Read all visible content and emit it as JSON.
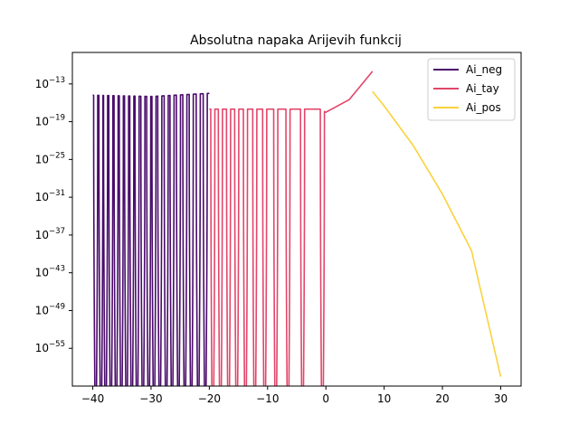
{
  "chart_data": {
    "type": "line",
    "title": "Absolutna napaka Arijevih funkcij",
    "xlabel": "",
    "ylabel": "",
    "x_scale": "linear",
    "y_scale": "log",
    "xlim": [
      -43.5,
      33.5
    ],
    "ylim_exponent": [
      -61,
      -8
    ],
    "x_ticks": [
      -40,
      -30,
      -20,
      -10,
      0,
      10,
      20,
      30
    ],
    "x_tick_labels": [
      "−40",
      "−30",
      "−20",
      "−10",
      "0",
      "10",
      "20",
      "30"
    ],
    "y_tick_exponents": [
      -55,
      -49,
      -43,
      -37,
      -31,
      -25,
      -19,
      -13
    ],
    "y_tick_labels": [
      "−55",
      "−49",
      "−43",
      "−37",
      "−31",
      "−25",
      "−19",
      "−13"
    ],
    "y_tick_base": "10",
    "legend_position": "top-right",
    "grid": false,
    "series": [
      {
        "name": "Ai_neg",
        "color": "#4a0c6b",
        "x_range": [
          -40,
          -20
        ],
        "log10_error": [
          [
            -40,
            -14.8
          ],
          [
            -30,
            -15.0
          ],
          [
            -20,
            -14.5
          ]
        ],
        "oscillating_to_zero_near": [
          -39.5,
          -38.6,
          -37.8,
          -36.9,
          -36.0,
          -35.1,
          -34.2,
          -33.3,
          -32.4,
          -31.4,
          -30.4,
          -29.5,
          -28.5,
          -27.4,
          -26.4,
          -25.3,
          -24.2,
          -23.1,
          -21.9,
          -20.7
        ]
      },
      {
        "name": "Ai_tay",
        "color": "#e2466a",
        "x_range": [
          -20,
          8
        ],
        "log10_error": [
          [
            -19,
            -17.0
          ],
          [
            -10,
            -17.0
          ],
          [
            -1,
            -17.0
          ],
          [
            0,
            -17.5
          ],
          [
            4,
            -15.5
          ],
          [
            8,
            -11.0
          ]
        ],
        "oscillating_to_zero_near": [
          -19.4,
          -18.1,
          -16.7,
          -15.3,
          -13.8,
          -12.2,
          -10.5,
          -8.6,
          -6.5,
          -4.0,
          -0.6
        ]
      },
      {
        "name": "Ai_pos",
        "color": "#fbd13b",
        "x_range": [
          8,
          30
        ],
        "log10_error": [
          [
            8,
            -14.2
          ],
          [
            10,
            -16.5
          ],
          [
            15,
            -22.8
          ],
          [
            20,
            -30.5
          ],
          [
            25,
            -39.5
          ],
          [
            30,
            -59.5
          ]
        ]
      }
    ]
  }
}
